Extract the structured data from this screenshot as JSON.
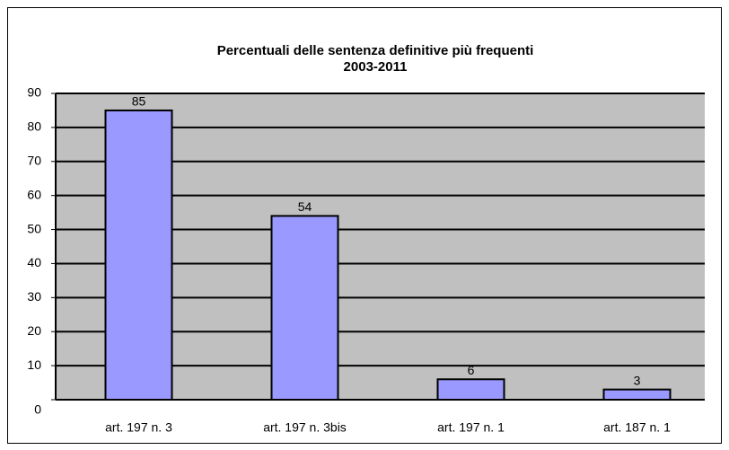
{
  "chart_data": {
    "type": "bar",
    "title": [
      "Percentuali delle sentenza definitive più frequenti",
      "2003-2011"
    ],
    "categories": [
      "art. 197 n. 3",
      "art. 197 n. 3bis",
      "art. 197 n. 1",
      "art. 187 n. 1"
    ],
    "values": [
      85,
      54,
      6,
      3
    ],
    "color": "#9999ff",
    "ylim": [
      0,
      90
    ],
    "yticks": [
      0,
      10,
      20,
      30,
      40,
      50,
      60,
      70,
      80,
      90
    ],
    "grid": true
  }
}
